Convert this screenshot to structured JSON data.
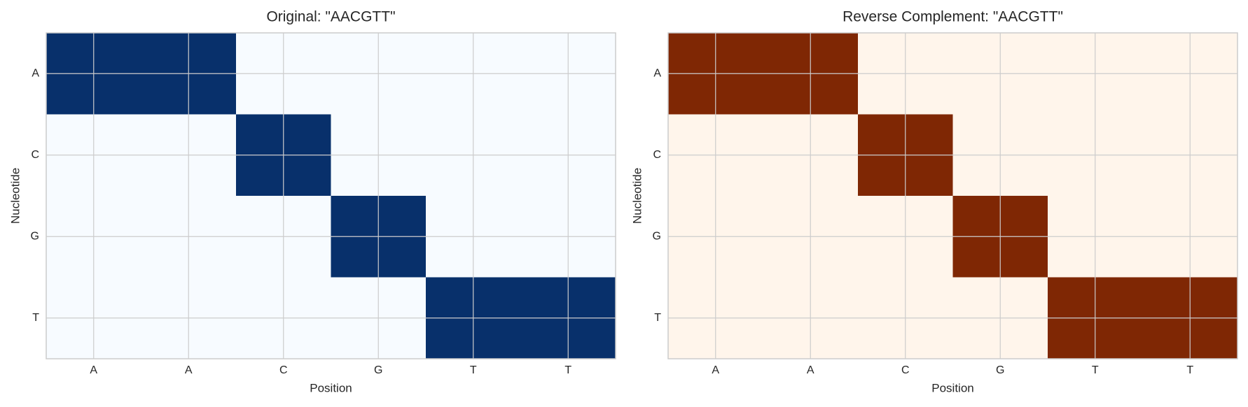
{
  "chart_data": [
    {
      "type": "heatmap",
      "title": "Original: \"AACGTT\"",
      "x_label": "Position",
      "y_label": "Nucleotide",
      "x": [
        "A",
        "A",
        "C",
        "G",
        "T",
        "T"
      ],
      "y": [
        "A",
        "C",
        "G",
        "T"
      ],
      "values": [
        [
          1,
          1,
          0,
          0,
          0,
          0
        ],
        [
          0,
          0,
          1,
          0,
          0,
          0
        ],
        [
          0,
          0,
          0,
          1,
          0,
          0
        ],
        [
          0,
          0,
          0,
          0,
          1,
          1
        ]
      ],
      "colors": [
        "#f7fbff",
        "#08306b"
      ],
      "grid": true
    },
    {
      "type": "heatmap",
      "title": "Reverse Complement: \"AACGTT\"",
      "x_label": "Position",
      "y_label": "Nucleotide",
      "x": [
        "A",
        "A",
        "C",
        "G",
        "T",
        "T"
      ],
      "y": [
        "A",
        "C",
        "G",
        "T"
      ],
      "values": [
        [
          1,
          1,
          0,
          0,
          0,
          0
        ],
        [
          0,
          0,
          1,
          0,
          0,
          0
        ],
        [
          0,
          0,
          0,
          1,
          0,
          0
        ],
        [
          0,
          0,
          0,
          0,
          1,
          1
        ]
      ],
      "colors": [
        "#fff5eb",
        "#7f2704"
      ],
      "grid": true
    }
  ]
}
